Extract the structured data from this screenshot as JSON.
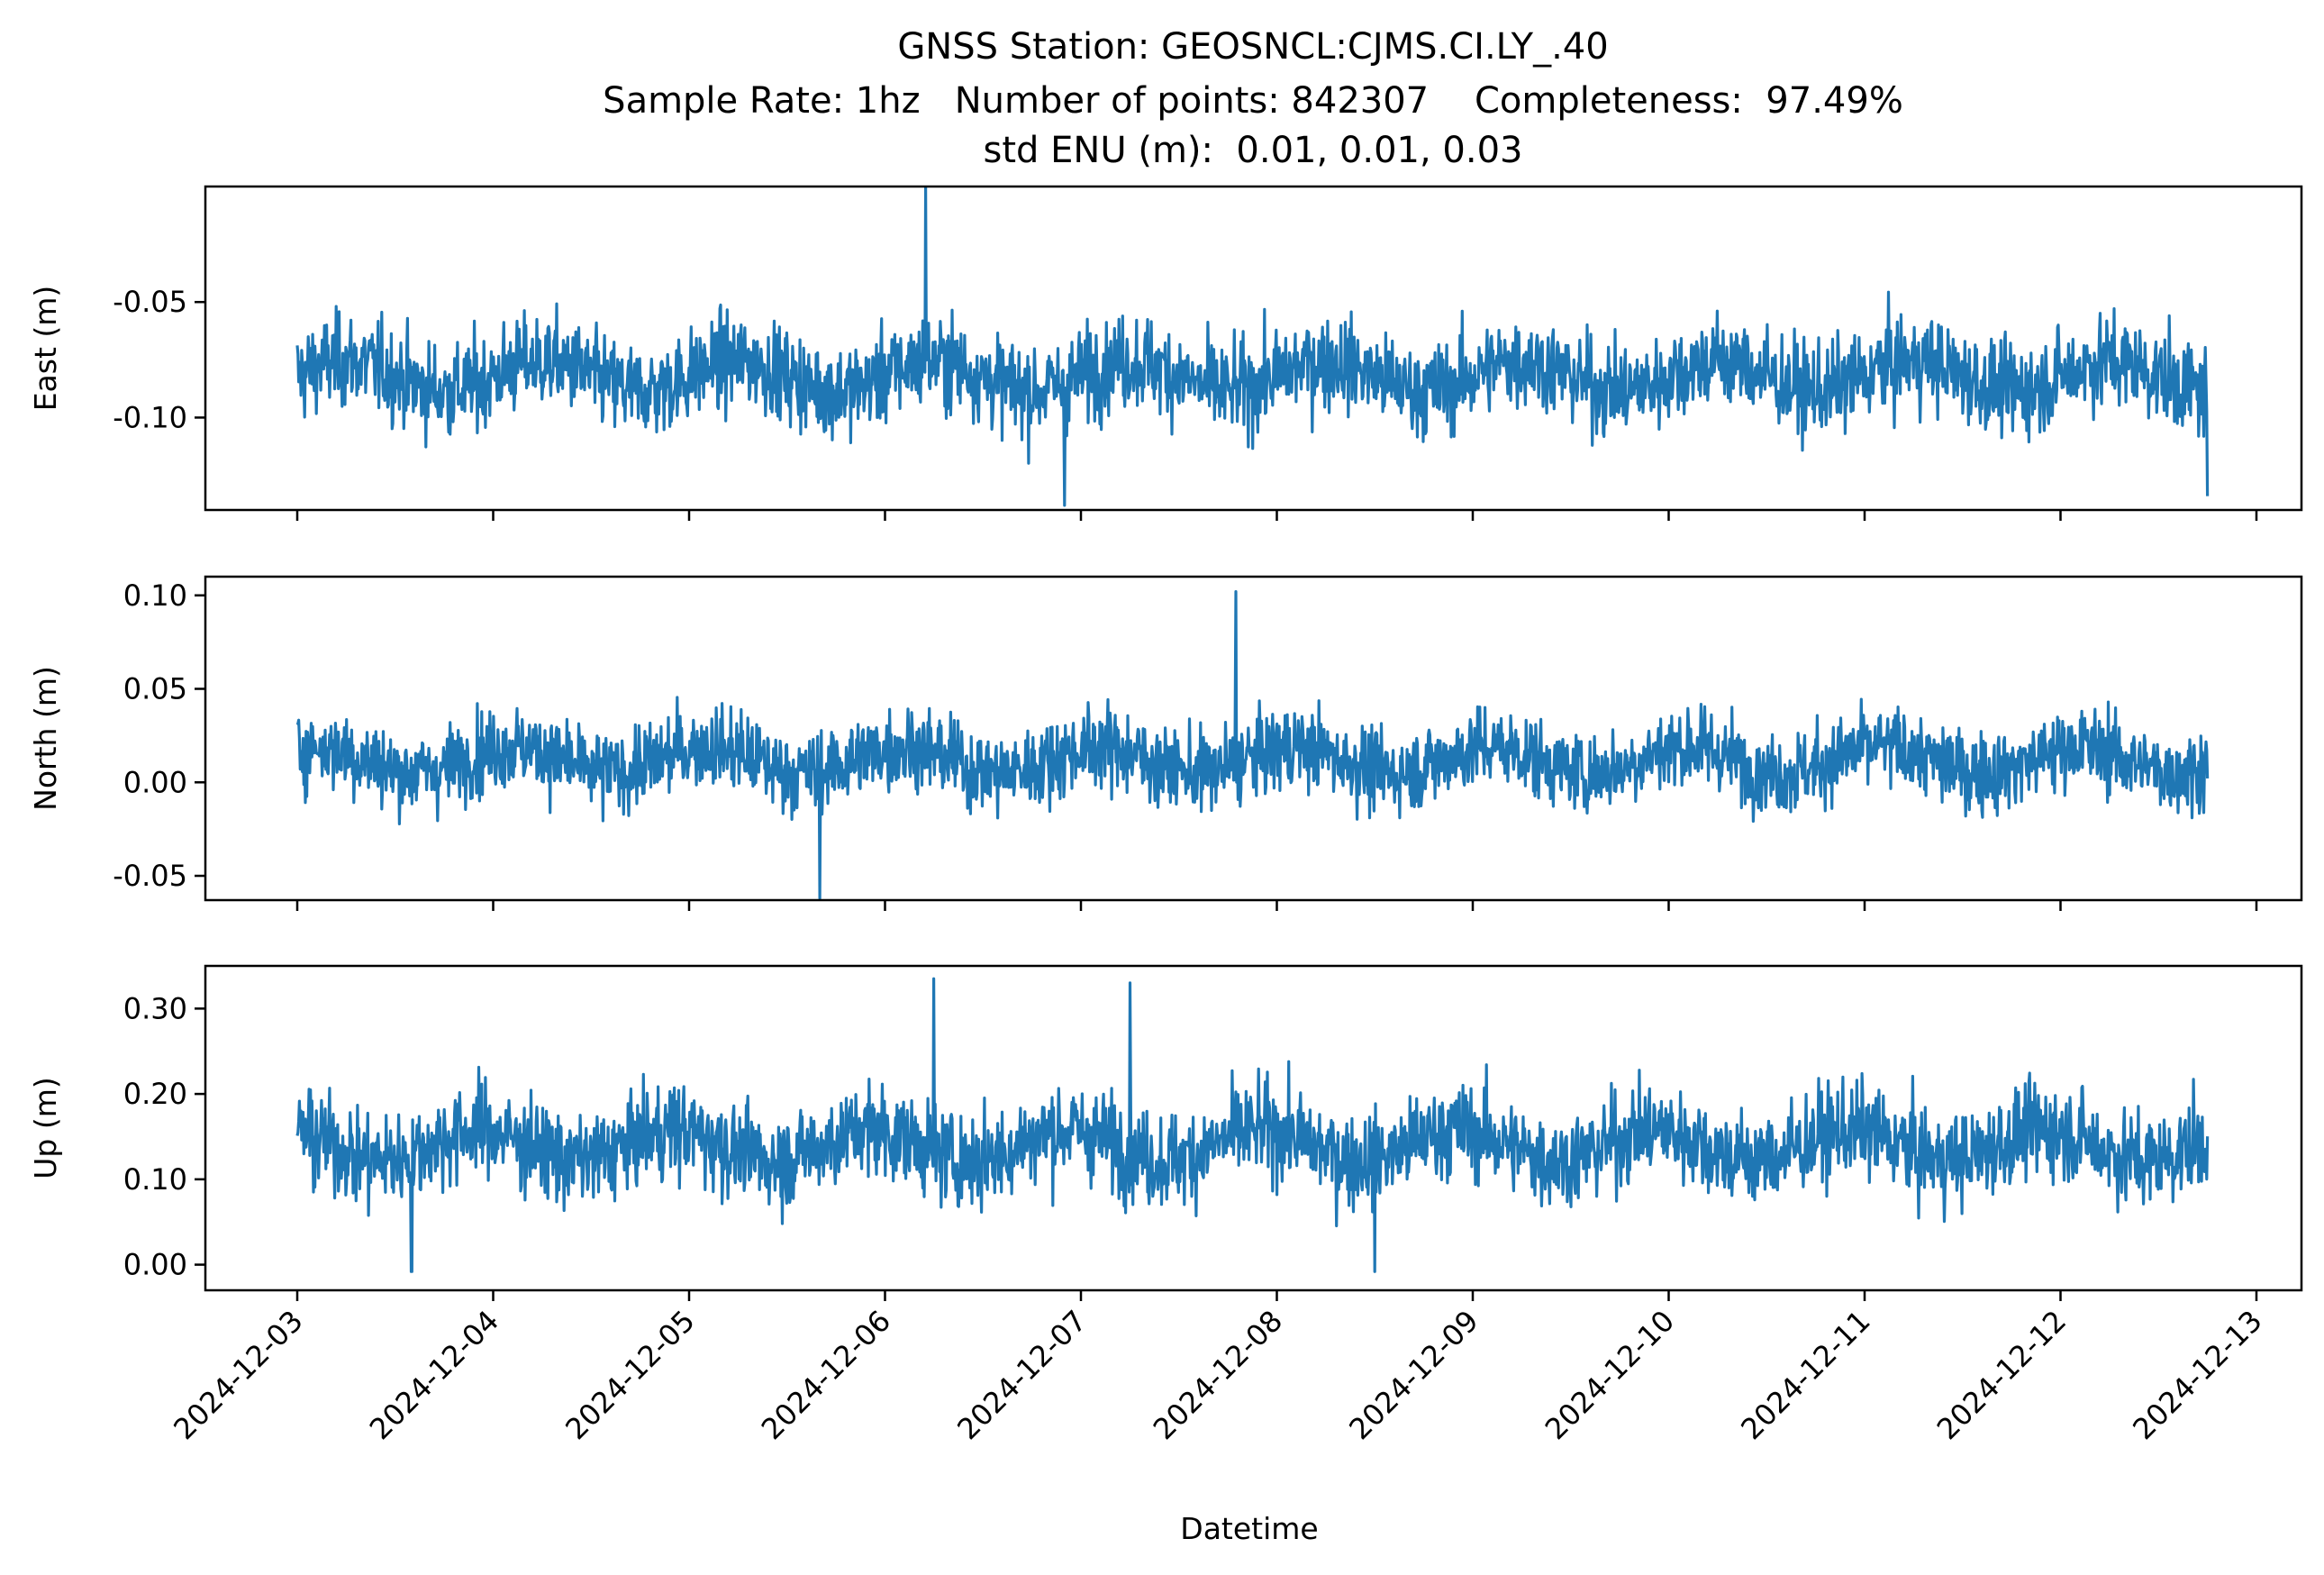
{
  "chart_data": {
    "type": "line",
    "title_lines": [
      "GNSS Station: GEOSNCL:CJMS.CI.LY_.40",
      "Sample Rate: 1hz   Number of points: 842307    Completeness:  97.49%",
      "std ENU (m):  0.01, 0.01, 0.03"
    ],
    "xlabel": "Datetime",
    "x_ticks": [
      "2024-12-03",
      "2024-12-04",
      "2024-12-05",
      "2024-12-06",
      "2024-12-07",
      "2024-12-08",
      "2024-12-09",
      "2024-12-10",
      "2024-12-11",
      "2024-12-12",
      "2024-12-13"
    ],
    "x_range": [
      "2024-12-03T00:00",
      "2024-12-12T18:00"
    ],
    "line_color": "#1f77b4",
    "panels": [
      {
        "ylabel": "East (m)",
        "ylim": [
          -0.14,
          -0.0
        ],
        "yticks": [
          -0.1,
          -0.05
        ],
        "ytick_labels": [
          "-0.10",
          "-0.05"
        ],
        "approx_median": -0.082,
        "approx_band_low": -0.108,
        "approx_band_high": -0.057,
        "notable_extremes": [
          {
            "time": "2024-12-06T05:00",
            "value": -0.0
          },
          {
            "time": "2024-12-06T22:00",
            "value": -0.138
          },
          {
            "time": "2024-12-12T18:00",
            "value": -0.134
          }
        ]
      },
      {
        "ylabel": "North (m)",
        "ylim": [
          -0.063,
          0.11
        ],
        "yticks": [
          -0.05,
          0.0,
          0.05,
          0.1
        ],
        "ytick_labels": [
          "-0.05",
          "0.00",
          "0.05",
          "0.10"
        ],
        "approx_median": 0.012,
        "approx_band_low": -0.015,
        "approx_band_high": 0.04,
        "notable_extremes": [
          {
            "time": "2024-12-07T19:00",
            "value": 0.102
          },
          {
            "time": "2024-12-05T16:00",
            "value": -0.062
          }
        ]
      },
      {
        "ylabel": "Up (m)",
        "ylim": [
          -0.03,
          0.35
        ],
        "yticks": [
          0.0,
          0.1,
          0.2,
          0.3
        ],
        "ytick_labels": [
          "0.00",
          "0.10",
          "0.20",
          "0.30"
        ],
        "approx_median": 0.14,
        "approx_band_low": 0.07,
        "approx_band_high": 0.21,
        "notable_extremes": [
          {
            "time": "2024-12-06T06:00",
            "value": 0.335
          },
          {
            "time": "2024-12-07T06:00",
            "value": 0.33
          },
          {
            "time": "2024-12-03T14:00",
            "value": -0.008
          },
          {
            "time": "2024-12-08T12:00",
            "value": -0.008
          }
        ]
      }
    ]
  }
}
